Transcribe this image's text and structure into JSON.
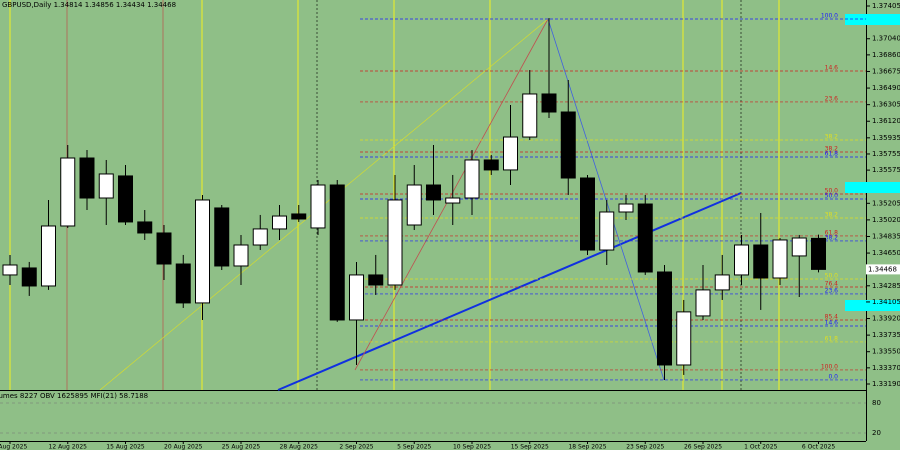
{
  "chart_data": {
    "type": "candlestick",
    "title": "GBPUSD,Daily 1.34814 1.34856 1.34434 1.34468",
    "subtitle": "Volumes 8227 OBV 1625895 MFI(21) 58.7188",
    "categories": [
      "7 Aug 2025",
      null,
      null,
      "12 Aug 2025",
      null,
      null,
      "15 Aug 2025",
      null,
      null,
      "20 Aug 2025",
      null,
      null,
      "25 Aug 2025",
      null,
      null,
      "28 Aug 2025",
      null,
      null,
      "2 Sep 2025",
      null,
      null,
      "5 Sep 2025",
      null,
      null,
      "10 Sep 2025",
      null,
      null,
      "15 Sep 2025",
      null,
      null,
      "18 Sep 2025",
      null,
      null,
      "23 Sep 2025",
      null,
      null,
      "26 Sep 2025",
      null,
      null,
      "1 Oct 2025",
      null,
      null,
      "6 Oct 2025"
    ],
    "open": [
      1.34406,
      1.34484,
      1.34283,
      1.34952,
      1.3571,
      1.35264,
      1.3551,
      1.34997,
      1.34874,
      1.34528,
      1.34094,
      1.35153,
      1.34506,
      1.3474,
      1.34919,
      1.35086,
      1.3493,
      1.35409,
      1.33904,
      1.34406,
      1.34294,
      1.34963,
      1.35409,
      1.35208,
      1.35264,
      1.35688,
      1.35577,
      1.35944,
      1.36424,
      1.36223,
      1.35487,
      1.34684,
      1.35108,
      1.35197,
      1.34439,
      1.33402,
      1.33949,
      1.34239,
      1.34406,
      1.3474,
      1.34372,
      1.34618,
      1.34814
    ],
    "high": [
      1.34629,
      1.34551,
      1.35242,
      1.35855,
      1.35799,
      1.35688,
      1.35632,
      1.3513,
      1.34963,
      1.34629,
      1.35298,
      1.35186,
      1.34852,
      1.35075,
      1.35186,
      1.35186,
      1.35465,
      1.35465,
      1.34551,
      1.34629,
      1.35521,
      1.35632,
      1.35855,
      1.35521,
      1.35799,
      1.35744,
      1.36301,
      1.36691,
      1.37271,
      1.3658,
      1.35521,
      1.35242,
      1.35298,
      1.35298,
      1.34517,
      1.34127,
      1.34517,
      1.34629,
      1.34852,
      1.35097,
      1.34818,
      1.34852,
      1.34856
    ],
    "low": [
      1.34294,
      1.34172,
      1.34239,
      1.3493,
      1.3513,
      1.34963,
      1.34963,
      1.34796,
      1.3435,
      1.34038,
      1.33904,
      1.34461,
      1.34294,
      1.34684,
      1.34796,
      1.34997,
      1.34852,
      1.33882,
      1.33402,
      1.34183,
      1.34239,
      1.34907,
      1.35075,
      1.34963,
      1.35075,
      1.35521,
      1.35409,
      1.35911,
      1.36156,
      1.35298,
      1.34629,
      1.34517,
      1.35019,
      1.34406,
      1.33235,
      1.33291,
      1.33904,
      1.34127,
      1.34294,
      1.34016,
      1.34294,
      1.3416,
      1.34434
    ],
    "close": [
      1.34517,
      1.34283,
      1.34952,
      1.3571,
      1.35264,
      1.35532,
      1.34997,
      1.34874,
      1.34528,
      1.34094,
      1.35242,
      1.34506,
      1.3474,
      1.34919,
      1.35063,
      1.3503,
      1.35409,
      1.33904,
      1.34406,
      1.34294,
      1.35242,
      1.35409,
      1.35242,
      1.35264,
      1.35688,
      1.35577,
      1.35944,
      1.36424,
      1.36223,
      1.35487,
      1.34684,
      1.35108,
      1.35197,
      1.34439,
      1.33402,
      1.33994,
      1.34239,
      1.34406,
      1.3474,
      1.34372,
      1.34796,
      1.34818,
      1.34468
    ],
    "ylim": [
      1.33123,
      1.37472
    ],
    "yticks": [
      1.37405,
      {
        "value": 1.3704,
        "label": "1.37040"
      },
      {
        "value": 1.3686,
        "label": "1.36860"
      },
      1.36675,
      {
        "value": 1.3649,
        "label": "1.36490"
      },
      1.36305,
      {
        "value": 1.3612,
        "label": "1.36120"
      },
      1.35935,
      1.35755,
      1.35575,
      1.35205,
      {
        "value": 1.3502,
        "label": "1.35020"
      },
      1.34835,
      {
        "value": 1.3465,
        "label": "1.34650"
      },
      1.34285,
      1.34105,
      {
        "value": 1.3392,
        "label": "1.33920"
      },
      1.33735,
      {
        "value": 1.3355,
        "label": "1.33550"
      },
      {
        "value": 1.3337,
        "label": "1.33370"
      },
      {
        "value": 1.3319,
        "label": "1.33190"
      }
    ],
    "levels": [
      {
        "label": "100.0",
        "value": 1.3726,
        "color": "#1c1cff"
      },
      {
        "label": "14.6",
        "value": 1.3668,
        "color": "#d02020"
      },
      {
        "label": "23.6",
        "value": 1.36335,
        "color": "#d02020"
      },
      {
        "label": "38.2",
        "value": 1.35911,
        "color": "#e0e020"
      },
      {
        "label": "38.2",
        "value": 1.35777,
        "color": "#d02020"
      },
      {
        "label": "61.8",
        "value": 1.35721,
        "color": "#1c1cff"
      },
      {
        "label": "50.0",
        "value": 1.35309,
        "color": "#d02020"
      },
      {
        "label": "50.0",
        "value": 1.35253,
        "color": "#1c1cff"
      },
      {
        "label": "38.2",
        "value": 1.35041,
        "color": "#e0e020"
      },
      {
        "label": "61.8",
        "value": 1.34841,
        "color": "#d02020"
      },
      {
        "label": "38.2",
        "value": 1.34785,
        "color": "#1c1cff"
      },
      {
        "label": "50.0",
        "value": 1.34361,
        "color": "#e0e020"
      },
      {
        "label": "76.4",
        "value": 1.34272,
        "color": "#d02020"
      },
      {
        "label": "23.6",
        "value": 1.34194,
        "color": "#1c1cff"
      },
      {
        "label": "85.4",
        "value": 1.33904,
        "color": "#d02020"
      },
      {
        "label": "14.6",
        "value": 1.33837,
        "color": "#1c1cff"
      },
      {
        "label": "61.8",
        "value": 1.33659,
        "color": "#e0e020"
      },
      {
        "label": "100.0",
        "value": 1.33347,
        "color": "#d02020"
      },
      {
        "label": "0.0",
        "value": 1.33235,
        "color": "#1c1cff"
      }
    ],
    "y2lim": [
      0,
      100
    ],
    "y2ticks": [
      80,
      20
    ]
  }
}
